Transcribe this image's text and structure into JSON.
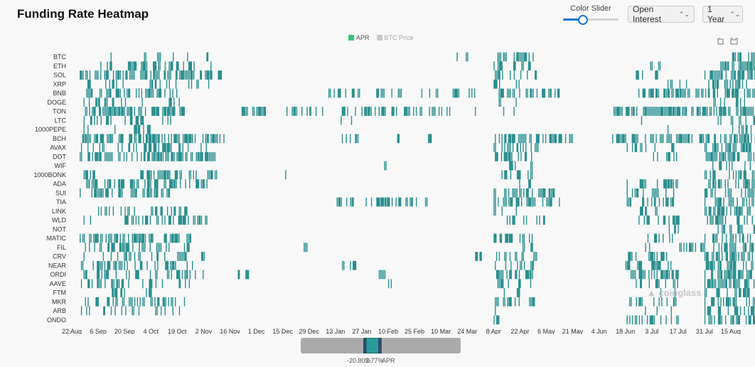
{
  "header": {
    "title": "Funding Rate Heatmap",
    "slider_label": "Color Slider",
    "slider_value": 0.35,
    "select_metric": "Open Interest",
    "select_period": "1 Year"
  },
  "legend": {
    "apr_label": "APR",
    "btc_label": "BTC Price",
    "apr_color": "#3cc47c",
    "btc_color": "#c8c8c8"
  },
  "colors": {
    "bar": "#2a8f8f",
    "accent": "#1976d2"
  },
  "zoom": {
    "min_label": "-20.80%",
    "max_label": "2.77%",
    "unit_label": "APR"
  },
  "watermark": "coinglass",
  "icons": [
    "restore-icon",
    "save-icon",
    "coinglass-logo-icon"
  ],
  "chart_data": {
    "type": "heatmap",
    "title": "Funding Rate Heatmap",
    "x_tick_labels": [
      "22 Aug",
      "6 Sep",
      "20 Sep",
      "4 Oct",
      "19 Oct",
      "2 Nov",
      "16 Nov",
      "1 Dec",
      "15 Dec",
      "29 Dec",
      "13 Jan",
      "27 Jan",
      "10 Feb",
      "25 Feb",
      "10 Mar",
      "24 Mar",
      "8 Apr",
      "22 Apr",
      "6 May",
      "21 May",
      "4 Jun",
      "18 Jun",
      "3 Jul",
      "17 Jul",
      "31 Jul",
      "15 Aug"
    ],
    "y_categories": [
      "BTC",
      "ETH",
      "SOL",
      "XRP",
      "BNB",
      "DOGE",
      "TON",
      "LTC",
      "1000PEPE",
      "BCH",
      "AVAX",
      "DOT",
      "WIF",
      "1000BONK",
      "ADA",
      "SUI",
      "TIA",
      "LINK",
      "WLD",
      "NOT",
      "MATIC",
      "FIL",
      "CRV",
      "NEAR",
      "ORDI",
      "AAVE",
      "FTM",
      "MKR",
      "ARB",
      "ONDO"
    ],
    "color_scale": {
      "min": -20.8,
      "max": 2.77,
      "unit": "APR"
    },
    "activity": [
      [
        [
          0.5,
          5.5,
          0.15
        ],
        [
          14.5,
          15.2,
          0.4
        ],
        [
          16.0,
          17.5,
          0.45
        ],
        [
          25.0,
          26.0,
          0.5
        ]
      ],
      [
        [
          0.6,
          5.3,
          0.3
        ],
        [
          16.0,
          17.4,
          0.35
        ],
        [
          21.7,
          22.3,
          0.3
        ],
        [
          24.5,
          26.0,
          0.55
        ]
      ],
      [
        [
          0.3,
          5.6,
          0.5
        ],
        [
          16.0,
          17.7,
          0.4
        ],
        [
          21.2,
          22.3,
          0.3
        ],
        [
          24.0,
          26.0,
          0.6
        ]
      ],
      [
        [
          0.3,
          5.3,
          0.12
        ],
        [
          16.0,
          17.4,
          0.15
        ],
        [
          22.5,
          23.3,
          0.3
        ],
        [
          24.0,
          26.0,
          0.45
        ]
      ],
      [
        [
          0.5,
          4.0,
          0.5
        ],
        [
          9.2,
          11.0,
          0.3
        ],
        [
          11.5,
          15.3,
          0.25
        ],
        [
          16.0,
          18.5,
          0.3
        ],
        [
          21.3,
          26.0,
          0.45
        ]
      ],
      [
        [
          0.3,
          4.2,
          0.2
        ],
        [
          16.0,
          17.0,
          0.1
        ],
        [
          22.0,
          22.8,
          0.2
        ],
        [
          24.0,
          26.0,
          0.25
        ]
      ],
      [
        [
          0.5,
          4.2,
          0.5
        ],
        [
          6.2,
          7.3,
          0.3
        ],
        [
          8.0,
          9.5,
          0.3
        ],
        [
          10.0,
          14.5,
          0.3
        ],
        [
          15.0,
          17.0,
          0.15
        ],
        [
          20.5,
          26.0,
          0.6
        ]
      ],
      [
        [
          0.4,
          4.0,
          0.12
        ],
        [
          10.2,
          10.8,
          0.08
        ],
        [
          21.5,
          22.2,
          0.1
        ],
        [
          24.5,
          26.0,
          0.3
        ]
      ],
      [
        [
          0.3,
          3.2,
          0.1
        ],
        [
          22.5,
          23.0,
          0.15
        ],
        [
          25.0,
          26.0,
          0.35
        ]
      ],
      [
        [
          0.3,
          5.8,
          0.55
        ],
        [
          10.0,
          11.0,
          0.4
        ],
        [
          12.0,
          14.0,
          0.15
        ],
        [
          16.0,
          19.0,
          0.55
        ],
        [
          20.5,
          26.0,
          0.5
        ]
      ],
      [
        [
          0.3,
          5.3,
          0.35
        ],
        [
          16.0,
          17.7,
          0.3
        ],
        [
          21.0,
          23.0,
          0.25
        ],
        [
          24.0,
          26.0,
          0.45
        ]
      ],
      [
        [
          0.3,
          5.5,
          0.55
        ],
        [
          16.0,
          17.5,
          0.35
        ],
        [
          22.0,
          23.0,
          0.2
        ],
        [
          24.0,
          26.0,
          0.55
        ]
      ],
      [
        [
          11.8,
          12.0,
          0.5
        ],
        [
          16.2,
          17.5,
          0.15
        ],
        [
          24.3,
          26.0,
          0.3
        ]
      ],
      [
        [
          0.4,
          0.8,
          0.3
        ],
        [
          2.5,
          5.5,
          0.35
        ],
        [
          8.0,
          8.3,
          0.5
        ],
        [
          16.3,
          17.5,
          0.15
        ],
        [
          24.0,
          26.0,
          0.4
        ]
      ],
      [
        [
          0.3,
          5.2,
          0.4
        ],
        [
          16.0,
          17.5,
          0.15
        ],
        [
          21.0,
          23.0,
          0.25
        ],
        [
          24.0,
          26.0,
          0.4
        ]
      ],
      [
        [
          0.3,
          4.0,
          0.35
        ],
        [
          16.0,
          18.3,
          0.5
        ],
        [
          21.0,
          23.0,
          0.3
        ],
        [
          24.0,
          26.0,
          0.45
        ]
      ],
      [
        [
          10.0,
          13.5,
          0.3
        ],
        [
          16.0,
          18.5,
          0.4
        ],
        [
          21.0,
          23.0,
          0.3
        ],
        [
          24.0,
          26.0,
          0.4
        ]
      ],
      [
        [
          0.8,
          4.5,
          0.25
        ],
        [
          16.0,
          17.5,
          0.15
        ],
        [
          21.5,
          22.5,
          0.2
        ],
        [
          24.0,
          26.0,
          0.45
        ]
      ],
      [
        [
          0.3,
          1.0,
          0.3
        ],
        [
          2.0,
          5.3,
          0.5
        ],
        [
          16.5,
          18.0,
          0.3
        ],
        [
          21.5,
          23.0,
          0.25
        ],
        [
          24.0,
          26.0,
          0.4
        ]
      ],
      [
        [
          22.5,
          23.0,
          0.2
        ],
        [
          24.5,
          26.0,
          0.35
        ]
      ],
      [
        [
          0.3,
          4.5,
          0.45
        ],
        [
          16.0,
          17.5,
          0.2
        ],
        [
          21.5,
          23.0,
          0.25
        ],
        [
          24.0,
          26.0,
          0.4
        ]
      ],
      [
        [
          0.5,
          4.5,
          0.3
        ],
        [
          8.7,
          9.0,
          0.5
        ],
        [
          17.0,
          17.6,
          0.2
        ],
        [
          21.7,
          22.5,
          0.2
        ],
        [
          23.0,
          26.0,
          0.4
        ]
      ],
      [
        [
          0.3,
          5.2,
          0.25
        ],
        [
          15.3,
          15.6,
          0.5
        ],
        [
          16.0,
          17.7,
          0.3
        ],
        [
          21.0,
          23.0,
          0.3
        ],
        [
          24.0,
          26.0,
          0.4
        ]
      ],
      [
        [
          0.3,
          4.8,
          0.35
        ],
        [
          10.2,
          10.8,
          0.3
        ],
        [
          16.0,
          17.5,
          0.3
        ],
        [
          21.0,
          23.0,
          0.3
        ],
        [
          24.0,
          26.0,
          0.45
        ]
      ],
      [
        [
          0.3,
          5.0,
          0.3
        ],
        [
          6.2,
          6.6,
          0.3
        ],
        [
          11.5,
          12.0,
          0.3
        ],
        [
          16.0,
          17.5,
          0.35
        ],
        [
          21.0,
          23.0,
          0.3
        ],
        [
          24.0,
          26.0,
          0.45
        ]
      ],
      [
        [
          0.3,
          4.5,
          0.25
        ],
        [
          11.9,
          12.2,
          0.5
        ],
        [
          16.0,
          17.5,
          0.35
        ],
        [
          21.3,
          23.0,
          0.2
        ],
        [
          24.0,
          26.0,
          0.4
        ]
      ],
      [
        [
          0.4,
          4.3,
          0.12
        ],
        [
          16.0,
          17.0,
          0.1
        ],
        [
          21.5,
          23.0,
          0.1
        ],
        [
          24.0,
          26.0,
          0.25
        ]
      ],
      [
        [
          0.5,
          4.3,
          0.3
        ],
        [
          16.0,
          17.5,
          0.3
        ],
        [
          21.0,
          23.0,
          0.3
        ],
        [
          24.0,
          26.0,
          0.45
        ]
      ],
      [
        [
          0.3,
          4.5,
          0.2
        ],
        [
          16.0,
          17.0,
          0.1
        ],
        [
          21.5,
          23.0,
          0.2
        ],
        [
          24.0,
          26.0,
          0.4
        ]
      ],
      [
        [
          16.0,
          17.0,
          0.15
        ],
        [
          21.0,
          23.0,
          0.35
        ],
        [
          24.0,
          26.0,
          0.6
        ]
      ]
    ]
  }
}
